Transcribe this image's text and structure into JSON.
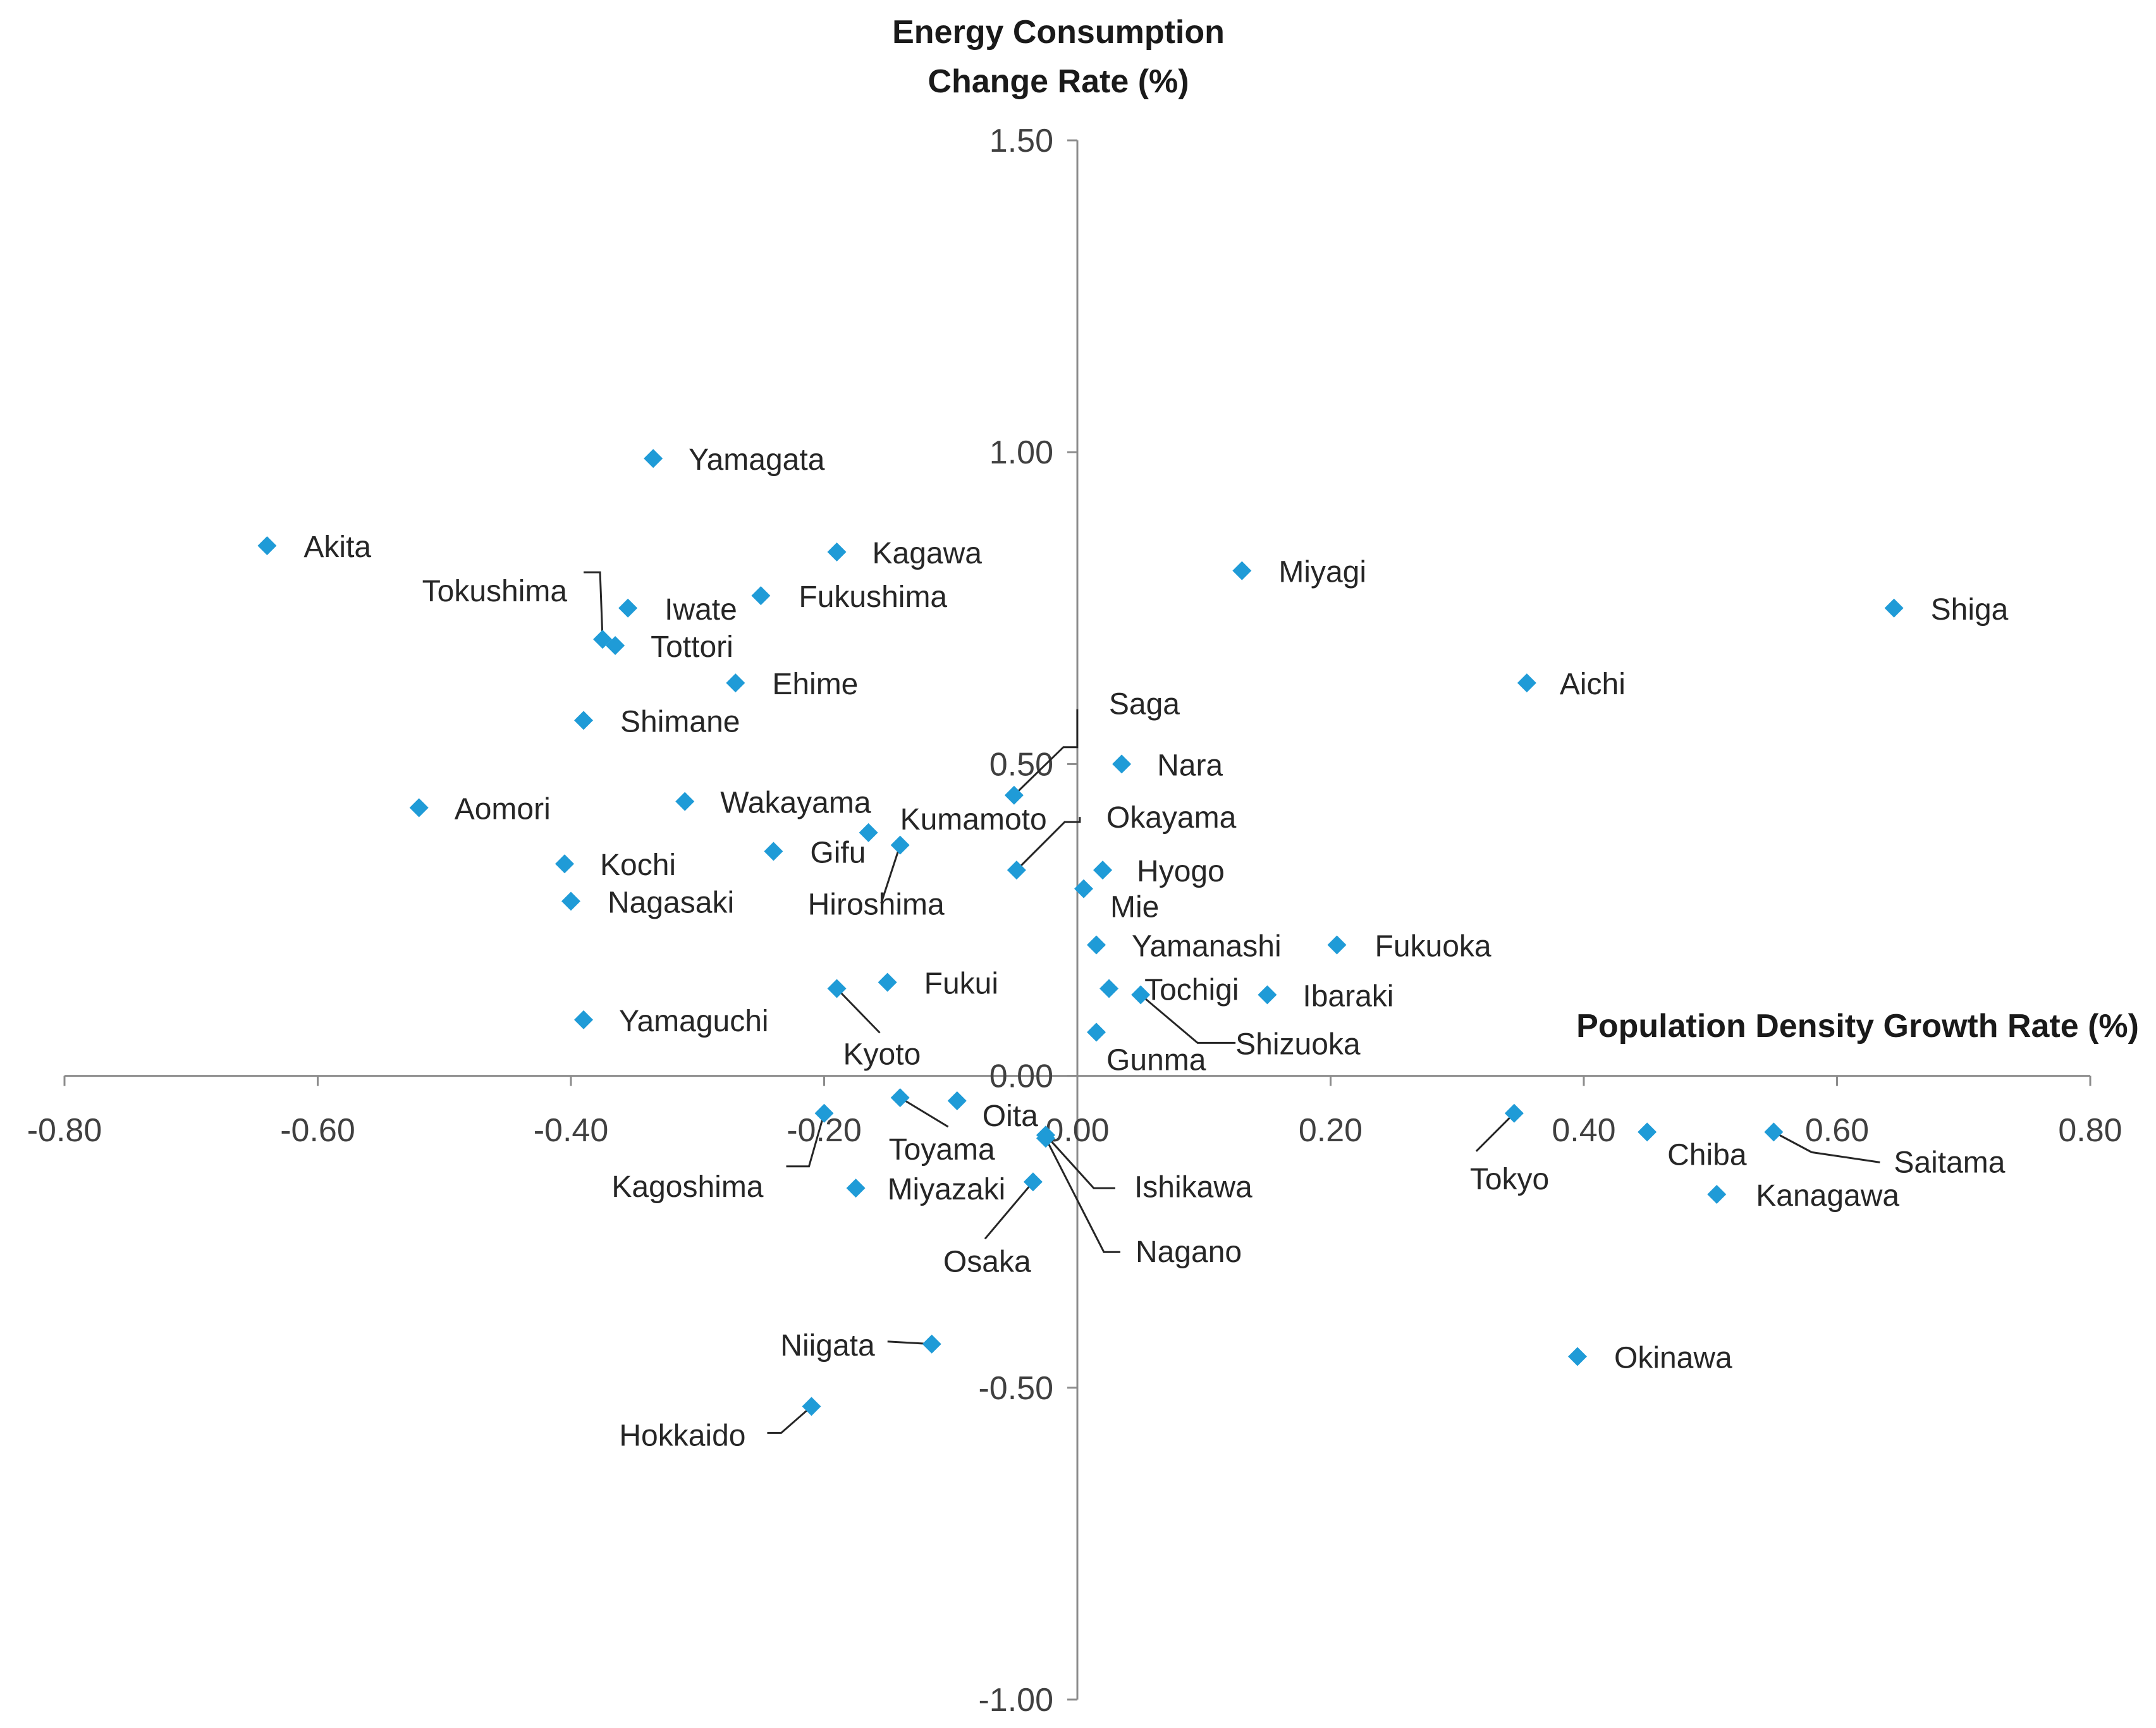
{
  "chart_data": {
    "type": "scatter",
    "ylabel": [
      "Energy Consumption",
      "Change Rate  (%)"
    ],
    "xlabel": "Population Density Growth Rate (%)",
    "xlim": [
      -0.8,
      0.8
    ],
    "ylim": [
      -1.0,
      1.5
    ],
    "xticks": [
      "-0.80",
      "-0.60",
      "-0.40",
      "-0.20",
      "0.00",
      "0.20",
      "0.40",
      "0.60",
      "0.80"
    ],
    "yticks": [
      "-1.00",
      "-0.50",
      "0.00",
      "0.50",
      "1.00",
      "1.50"
    ],
    "xtick_values": [
      -0.8,
      -0.6,
      -0.4,
      -0.2,
      0.0,
      0.2,
      0.4,
      0.6,
      0.8
    ],
    "ytick_values": [
      -1.0,
      -0.5,
      0.0,
      0.5,
      1.0,
      1.5
    ],
    "grid": false,
    "marker_color": "#1f9bd7",
    "points": [
      {
        "name": "Yamagata",
        "x": -0.335,
        "y": 0.99
      },
      {
        "name": "Akita",
        "x": -0.64,
        "y": 0.85
      },
      {
        "name": "Kagawa",
        "x": -0.19,
        "y": 0.84
      },
      {
        "name": "Miyagi",
        "x": 0.13,
        "y": 0.81
      },
      {
        "name": "Tokushima",
        "x": -0.375,
        "y": 0.7
      },
      {
        "name": "Iwate",
        "x": -0.355,
        "y": 0.75
      },
      {
        "name": "Fukushima",
        "x": -0.25,
        "y": 0.77
      },
      {
        "name": "Tottori",
        "x": -0.365,
        "y": 0.69
      },
      {
        "name": "Shiga",
        "x": 0.645,
        "y": 0.75
      },
      {
        "name": "Ehime",
        "x": -0.27,
        "y": 0.63
      },
      {
        "name": "Aichi",
        "x": 0.355,
        "y": 0.63
      },
      {
        "name": "Shimane",
        "x": -0.39,
        "y": 0.57
      },
      {
        "name": "Saga",
        "x": -0.05,
        "y": 0.45
      },
      {
        "name": "Nara",
        "x": 0.035,
        "y": 0.5
      },
      {
        "name": "Aomori",
        "x": -0.52,
        "y": 0.43
      },
      {
        "name": "Wakayama",
        "x": -0.31,
        "y": 0.44
      },
      {
        "name": "Kumamoto",
        "x": -0.165,
        "y": 0.39
      },
      {
        "name": "Gifu",
        "x": -0.24,
        "y": 0.36
      },
      {
        "name": "Hiroshima",
        "x": -0.14,
        "y": 0.37
      },
      {
        "name": "Okayama",
        "x": -0.048,
        "y": 0.33
      },
      {
        "name": "Kochi",
        "x": -0.405,
        "y": 0.34
      },
      {
        "name": "Hyogo",
        "x": 0.02,
        "y": 0.33
      },
      {
        "name": "Mie",
        "x": 0.005,
        "y": 0.3
      },
      {
        "name": "Nagasaki",
        "x": -0.4,
        "y": 0.28
      },
      {
        "name": "Yamanashi",
        "x": 0.015,
        "y": 0.21
      },
      {
        "name": "Fukuoka",
        "x": 0.205,
        "y": 0.21
      },
      {
        "name": "Fukui",
        "x": -0.15,
        "y": 0.15
      },
      {
        "name": "Kyoto",
        "x": -0.19,
        "y": 0.14
      },
      {
        "name": "Tochigi",
        "x": 0.025,
        "y": 0.14
      },
      {
        "name": "Shizuoka",
        "x": 0.05,
        "y": 0.13
      },
      {
        "name": "Ibaraki",
        "x": 0.15,
        "y": 0.13
      },
      {
        "name": "Yamaguchi",
        "x": -0.39,
        "y": 0.09
      },
      {
        "name": "Gunma",
        "x": 0.015,
        "y": 0.07
      },
      {
        "name": "Oita",
        "x": -0.095,
        "y": -0.04
      },
      {
        "name": "Toyama",
        "x": -0.14,
        "y": -0.035
      },
      {
        "name": "Kagoshima",
        "x": -0.2,
        "y": -0.06
      },
      {
        "name": "Tokyo",
        "x": 0.345,
        "y": -0.06
      },
      {
        "name": "Chiba",
        "x": 0.45,
        "y": -0.09
      },
      {
        "name": "Saitama",
        "x": 0.55,
        "y": -0.09
      },
      {
        "name": "Ishikawa",
        "x": -0.025,
        "y": -0.095
      },
      {
        "name": "Nagano",
        "x": -0.025,
        "y": -0.1
      },
      {
        "name": "Miyazaki",
        "x": -0.175,
        "y": -0.18
      },
      {
        "name": "Osaka",
        "x": -0.035,
        "y": -0.17
      },
      {
        "name": "Kanagawa",
        "x": 0.505,
        "y": -0.19
      },
      {
        "name": "Niigata",
        "x": -0.115,
        "y": -0.43
      },
      {
        "name": "Okinawa",
        "x": 0.395,
        "y": -0.45
      },
      {
        "name": "Hokkaido",
        "x": -0.21,
        "y": -0.53
      }
    ]
  }
}
